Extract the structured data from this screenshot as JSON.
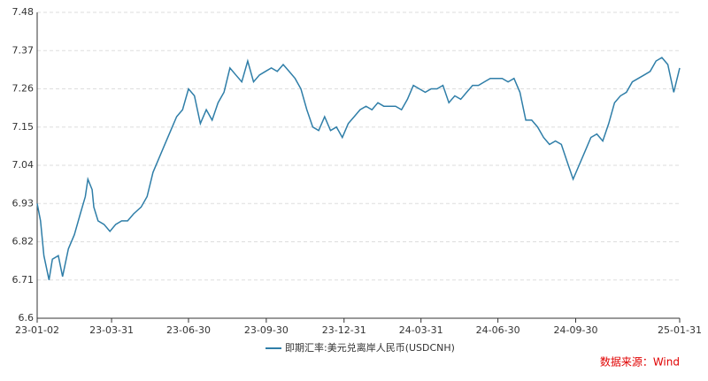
{
  "chart_data": {
    "type": "line",
    "x": [
      "23-01-02",
      "23-01-06",
      "23-01-10",
      "23-01-16",
      "23-01-20",
      "23-01-27",
      "23-02-01",
      "23-02-08",
      "23-02-15",
      "23-02-22",
      "23-02-28",
      "23-03-03",
      "23-03-08",
      "23-03-10",
      "23-03-15",
      "23-03-22",
      "23-03-29",
      "23-04-05",
      "23-04-12",
      "23-04-19",
      "23-04-26",
      "23-05-05",
      "23-05-12",
      "23-05-19",
      "23-05-26",
      "23-06-02",
      "23-06-09",
      "23-06-16",
      "23-06-23",
      "23-06-30",
      "23-07-07",
      "23-07-14",
      "23-07-21",
      "23-07-28",
      "23-08-04",
      "23-08-11",
      "23-08-18",
      "23-08-25",
      "23-09-01",
      "23-09-08",
      "23-09-15",
      "23-09-22",
      "23-09-29",
      "23-10-06",
      "23-10-13",
      "23-10-20",
      "23-10-27",
      "23-11-03",
      "23-11-10",
      "23-11-17",
      "23-11-24",
      "23-12-01",
      "23-12-08",
      "23-12-15",
      "23-12-22",
      "23-12-29",
      "24-01-05",
      "24-01-12",
      "24-01-19",
      "24-01-26",
      "24-02-02",
      "24-02-09",
      "24-02-16",
      "24-02-23",
      "24-03-01",
      "24-03-08",
      "24-03-15",
      "24-03-22",
      "24-03-29",
      "24-04-05",
      "24-04-12",
      "24-04-19",
      "24-04-26",
      "24-05-03",
      "24-05-10",
      "24-05-17",
      "24-05-24",
      "24-05-31",
      "24-06-07",
      "24-06-14",
      "24-06-21",
      "24-06-28",
      "24-07-05",
      "24-07-12",
      "24-07-19",
      "24-07-26",
      "24-08-02",
      "24-08-09",
      "24-08-16",
      "24-08-23",
      "24-08-30",
      "24-09-06",
      "24-09-13",
      "24-09-20",
      "24-09-27",
      "24-10-04",
      "24-10-11",
      "24-10-18",
      "24-10-25",
      "24-11-01",
      "24-11-08",
      "24-11-15",
      "24-11-22",
      "24-11-29",
      "24-12-06",
      "24-12-13",
      "24-12-20",
      "24-12-27",
      "25-01-03",
      "25-01-10",
      "25-01-17",
      "25-01-24",
      "25-01-31"
    ],
    "series": [
      {
        "name": "即期汇率:美元兑离岸人民币(USDCNH)",
        "color": "#2f7ea8",
        "values": [
          6.93,
          6.88,
          6.78,
          6.71,
          6.77,
          6.78,
          6.72,
          6.8,
          6.84,
          6.9,
          6.95,
          7.0,
          6.97,
          6.92,
          6.88,
          6.87,
          6.85,
          6.87,
          6.88,
          6.88,
          6.9,
          6.92,
          6.95,
          7.02,
          7.06,
          7.1,
          7.14,
          7.18,
          7.2,
          7.26,
          7.24,
          7.16,
          7.2,
          7.17,
          7.22,
          7.25,
          7.32,
          7.3,
          7.28,
          7.34,
          7.28,
          7.3,
          7.31,
          7.32,
          7.31,
          7.33,
          7.31,
          7.29,
          7.26,
          7.2,
          7.15,
          7.14,
          7.18,
          7.14,
          7.15,
          7.12,
          7.16,
          7.18,
          7.2,
          7.21,
          7.2,
          7.22,
          7.21,
          7.21,
          7.21,
          7.2,
          7.23,
          7.27,
          7.26,
          7.25,
          7.26,
          7.26,
          7.27,
          7.22,
          7.24,
          7.23,
          7.25,
          7.27,
          7.27,
          7.28,
          7.29,
          7.29,
          7.29,
          7.28,
          7.29,
          7.25,
          7.17,
          7.17,
          7.15,
          7.12,
          7.1,
          7.11,
          7.1,
          7.05,
          7.0,
          7.04,
          7.08,
          7.12,
          7.13,
          7.11,
          7.16,
          7.22,
          7.24,
          7.25,
          7.28,
          7.29,
          7.3,
          7.31,
          7.34,
          7.35,
          7.33,
          7.25,
          7.32
        ]
      }
    ],
    "xticks": [
      "23-01-02",
      "23-03-31",
      "23-06-30",
      "23-09-30",
      "23-12-31",
      "24-03-31",
      "24-06-30",
      "24-09-30",
      "25-01-31"
    ],
    "xlim": [
      "23-01-02",
      "25-01-31"
    ],
    "ylim": [
      6.6,
      7.48
    ],
    "yticks": [
      {
        "value": 6.6,
        "label": "6.6"
      },
      6.71,
      6.82,
      6.93,
      7.04,
      7.15,
      7.26,
      7.37,
      7.48
    ],
    "grid": true,
    "source": "数据来源：Wind"
  }
}
